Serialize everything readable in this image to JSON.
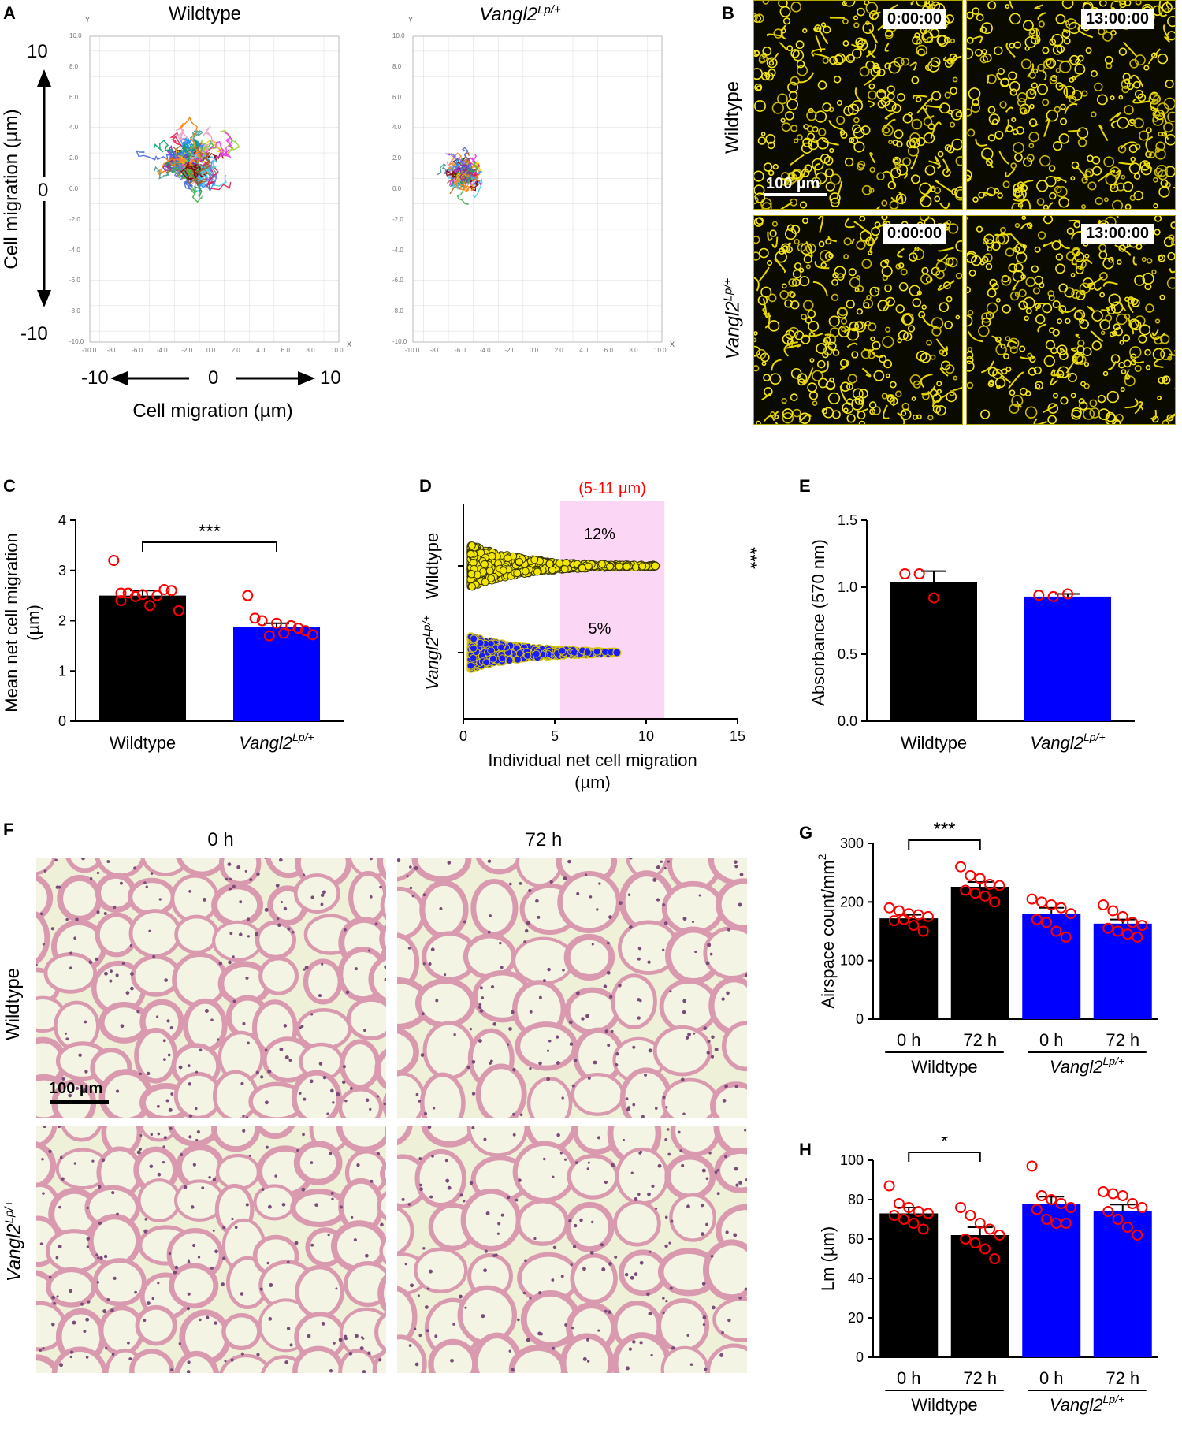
{
  "panels": {
    "A": {
      "letter": "A",
      "left_title": "Wildtype",
      "right_title_main": "Vangl2",
      "right_title_sup": "Lp/+",
      "y_axis_label": "Cell migration (µm)",
      "x_axis_label": "Cell migration (µm)",
      "y_top": "10",
      "y_mid": "0",
      "y_bottom": "-10",
      "x_left": "-10",
      "x_mid": "0",
      "x_right": "10",
      "tiny_axis_x": "X",
      "tiny_axis_y": "Y",
      "tiny_ticks": [
        "-10.0",
        "-8.0",
        "-6.0",
        "-4.0",
        "-2.0",
        "0.0",
        "2.0",
        "4.0",
        "6.0",
        "8.0",
        "10.0"
      ]
    },
    "B": {
      "letter": "B",
      "row1_label": "Wildtype",
      "row2_label_main": "Vangl2",
      "row2_label_sup": "Lp/+",
      "time_start": "0:00:00",
      "time_end": "13:00:00",
      "scale_label": "100 µm"
    },
    "C": {
      "letter": "C"
    },
    "D": {
      "letter": "D"
    },
    "E": {
      "letter": "E"
    },
    "F": {
      "letter": "F",
      "col1": "0 h",
      "col2": "72 h",
      "row1_label": "Wildtype",
      "row2_label_main": "Vangl2",
      "row2_label_sup": "Lp/+",
      "scale_label": "100 µm"
    },
    "G": {
      "letter": "G"
    },
    "H": {
      "letter": "H"
    }
  },
  "chart_data": [
    {
      "id": "C",
      "type": "bar",
      "ylabel": "Mean net cell migration (µm)",
      "ylabel_line1": "Mean net cell migration",
      "ylabel_line2": "(µm)",
      "ylim": [
        0,
        4
      ],
      "yticks": [
        "0",
        "1",
        "2",
        "3",
        "4"
      ],
      "categories": [
        "Wildtype",
        "Vangl2"
      ],
      "category_sup": [
        "",
        "Lp/+"
      ],
      "values": [
        2.5,
        1.88
      ],
      "errors": [
        0.1,
        0.07
      ],
      "colors": [
        "#000000",
        "#0000ff"
      ],
      "points": [
        [
          3.2,
          2.55,
          2.52,
          2.5,
          2.6,
          2.4,
          2.48,
          2.3,
          2.62,
          2.2,
          2.55
        ],
        [
          2.5,
          2.0,
          1.95,
          1.9,
          1.8,
          2.05,
          1.7,
          1.75,
          1.85,
          1.72
        ]
      ],
      "significance": [
        {
          "pair": [
            0,
            1
          ],
          "label": "***"
        }
      ]
    },
    {
      "id": "D",
      "type": "scatter",
      "xlabel_line1": "Individual net cell migration",
      "xlabel_line2": "(µm)",
      "xlim": [
        0,
        15
      ],
      "xticks": [
        "0",
        "5",
        "10",
        "15"
      ],
      "categories": [
        "Wildtype",
        "Vangl2"
      ],
      "category_sup": [
        "",
        "Lp/+"
      ],
      "highlight_range": [
        5.3,
        11
      ],
      "highlight_label": "(5-11 µm)",
      "series": [
        {
          "name": "Wildtype",
          "max": 10.5,
          "percent_label": "12%",
          "dot_color": "#f2e600",
          "edge": "#333300"
        },
        {
          "name": "Vangl2Lp/+",
          "max": 8.4,
          "percent_label": "5%",
          "dot_color": "#1a1aff",
          "edge": "#d8c800"
        }
      ],
      "significance": [
        {
          "label": "***"
        }
      ]
    },
    {
      "id": "E",
      "type": "bar",
      "ylabel": "Absorbance (570 nm)",
      "ylim": [
        0,
        1.5
      ],
      "yticks": [
        "0.0",
        "0.5",
        "1.0",
        "1.5"
      ],
      "categories": [
        "Wildtype",
        "Vangl2"
      ],
      "category_sup": [
        "",
        "Lp/+"
      ],
      "values": [
        1.04,
        0.93
      ],
      "errors": [
        0.08,
        0.02
      ],
      "colors": [
        "#000000",
        "#0000ff"
      ],
      "points": [
        [
          1.1,
          1.1,
          0.92
        ],
        [
          0.94,
          0.93,
          0.95
        ]
      ]
    },
    {
      "id": "G",
      "type": "bar",
      "ylabel": "Airspace count/mm²",
      "ylabel_main": "Airspace count/mm",
      "ylabel_sup": "2",
      "ylim": [
        0,
        300
      ],
      "yticks": [
        "0",
        "100",
        "200",
        "300"
      ],
      "categories": [
        "0 h",
        "72 h",
        "0 h",
        "72 h"
      ],
      "groups": [
        "Wildtype",
        "Vangl2"
      ],
      "group_sup": [
        "",
        "Lp/+"
      ],
      "values": [
        172,
        226,
        180,
        163
      ],
      "errors": [
        6,
        8,
        10,
        7
      ],
      "colors": [
        "#000000",
        "#000000",
        "#0000ff",
        "#0000ff"
      ],
      "points": [
        [
          190,
          185,
          180,
          178,
          175,
          168,
          170,
          160,
          150
        ],
        [
          260,
          245,
          240,
          230,
          228,
          220,
          215,
          210,
          200
        ],
        [
          205,
          200,
          195,
          190,
          180,
          170,
          165,
          150,
          140
        ],
        [
          195,
          185,
          175,
          165,
          160,
          155,
          150,
          145,
          140
        ]
      ],
      "significance": [
        {
          "pair": [
            0,
            1
          ],
          "label": "***"
        }
      ]
    },
    {
      "id": "H",
      "type": "bar",
      "ylabel": "Lm (µm)",
      "ylim": [
        0,
        100
      ],
      "yticks": [
        "0",
        "20",
        "40",
        "60",
        "80",
        "100"
      ],
      "categories": [
        "0 h",
        "72 h",
        "0 h",
        "72 h"
      ],
      "groups": [
        "Wildtype",
        "Vangl2"
      ],
      "group_sup": [
        "",
        "Lp/+"
      ],
      "values": [
        73,
        62,
        78,
        74
      ],
      "errors": [
        3,
        4,
        3.5,
        3.5
      ],
      "colors": [
        "#000000",
        "#000000",
        "#0000ff",
        "#0000ff"
      ],
      "points": [
        [
          87,
          78,
          76,
          74,
          73,
          72,
          70,
          68,
          65
        ],
        [
          76,
          72,
          68,
          65,
          62,
          60,
          58,
          55,
          50
        ],
        [
          97,
          82,
          80,
          78,
          76,
          75,
          70,
          68,
          68
        ],
        [
          84,
          83,
          82,
          78,
          76,
          74,
          70,
          66,
          62
        ]
      ],
      "significance": [
        {
          "pair": [
            0,
            1
          ],
          "label": "*"
        }
      ]
    }
  ]
}
